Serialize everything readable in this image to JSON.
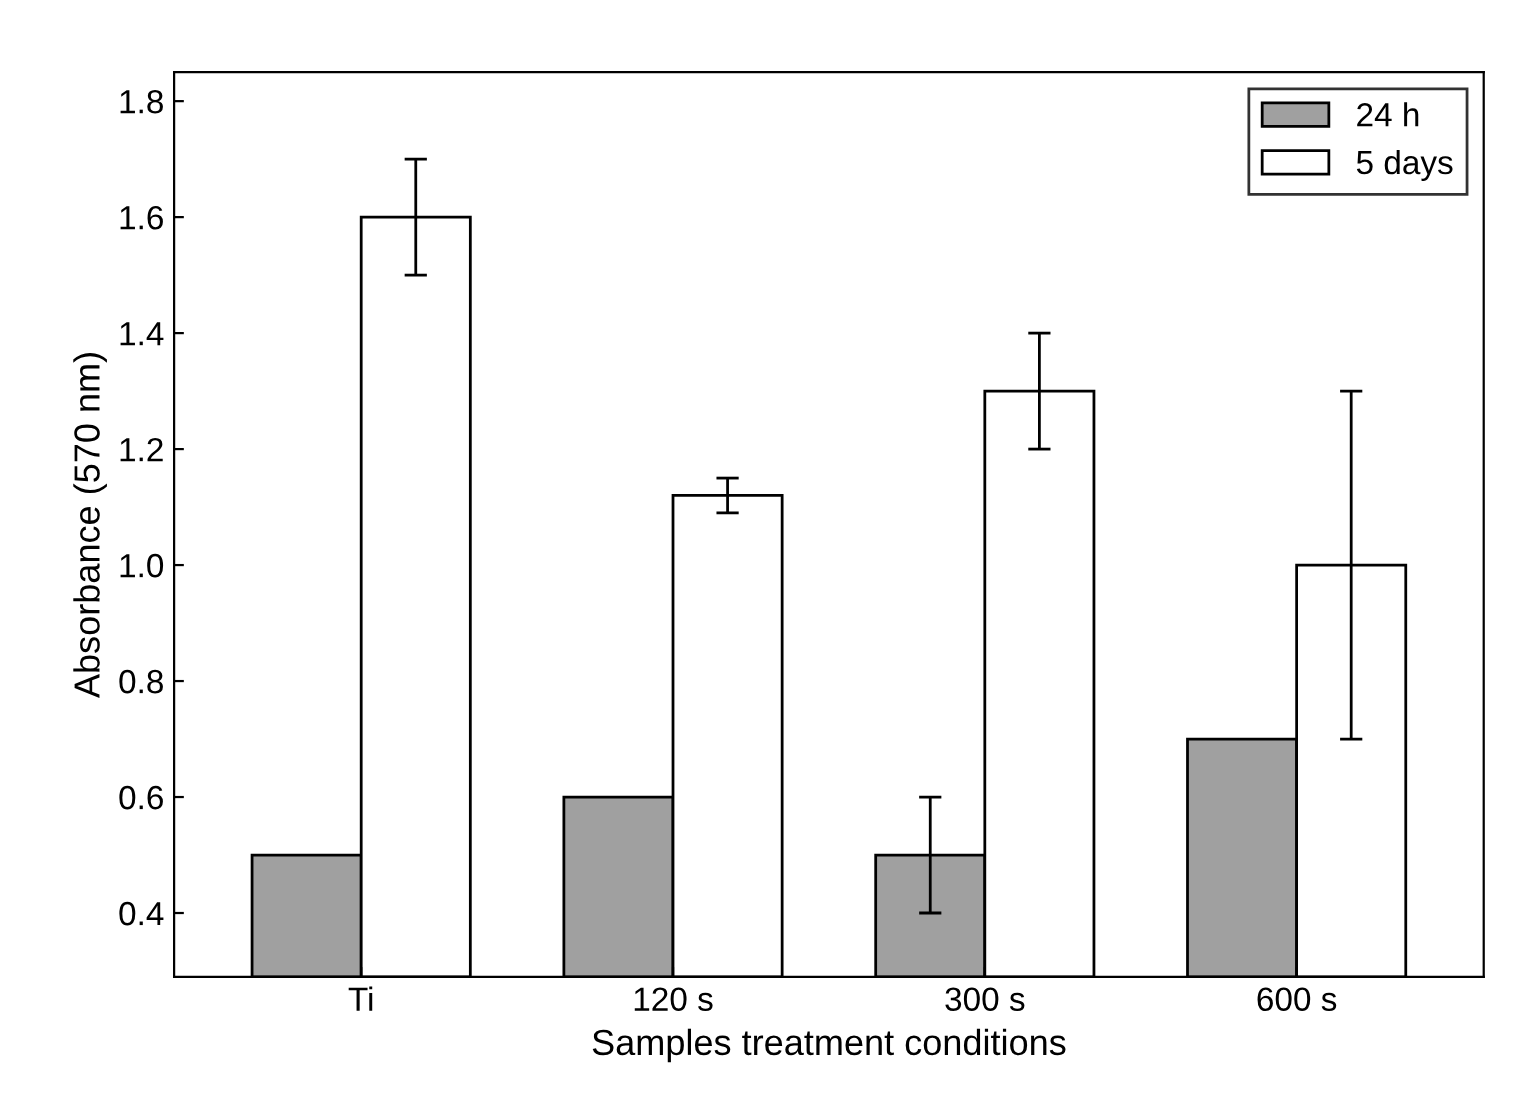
{
  "chart_data": {
    "type": "bar",
    "xlabel": "Samples treatment conditions",
    "ylabel": "Absorbance (570 nm)",
    "categories": [
      "Ti",
      "120 s",
      "300 s",
      "600 s"
    ],
    "series": [
      {
        "name": "24 h",
        "color": "#a0a0a0",
        "values": [
          0.5,
          0.6,
          0.5,
          0.7
        ],
        "errors": [
          null,
          null,
          0.1,
          null
        ]
      },
      {
        "name": "5 days",
        "color": "#ffffff",
        "values": [
          1.6,
          1.12,
          1.3,
          1.0
        ],
        "errors": [
          0.1,
          0.03,
          0.1,
          0.3
        ]
      }
    ],
    "ylim": [
      0.29,
      1.85
    ],
    "yticks": [
      0.4,
      0.6,
      0.8,
      {
        "value": 1.0,
        "label": "1.0"
      },
      1.2,
      1.4,
      1.6,
      1.8
    ],
    "legend": "top right",
    "grid": false
  }
}
